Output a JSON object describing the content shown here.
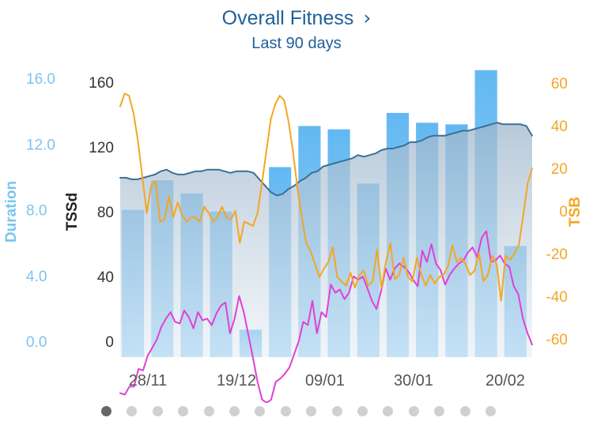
{
  "header": {
    "title": "Overall Fitness",
    "chevron": "›",
    "subtitle": "Last 90 days"
  },
  "colors": {
    "title": "#1f5f99",
    "duration_axis": "#7cc4ee",
    "bars": "#6fbdf2",
    "tssd_line": "#3d6f94",
    "fatigue_line": "#e040d6",
    "tsb_line": "#f3a623",
    "axis_text": "#333333"
  },
  "chart_data": {
    "type": "bar+line",
    "x_ticks": [
      "28/11",
      "19/12",
      "09/01",
      "30/01",
      "20/02"
    ],
    "axes": {
      "duration": {
        "label": "Duration",
        "ticks": [
          "0.0",
          "4.0",
          "8.0",
          "12.0",
          "16.0"
        ],
        "range": [
          0,
          16
        ]
      },
      "tssd": {
        "label": "TSSd",
        "ticks": [
          "0",
          "40",
          "80",
          "120",
          "160"
        ],
        "range": [
          0,
          160
        ]
      },
      "tsb": {
        "label": "TSB",
        "ticks": [
          "-60",
          "-40",
          "-20",
          "0",
          "20",
          "40",
          "60"
        ],
        "range": [
          -60,
          60
        ]
      }
    },
    "duration_bars": [
      8.0,
      9.8,
      9.0,
      7.9,
      0.7,
      10.6,
      13.1,
      12.9,
      9.6,
      13.9,
      13.3,
      13.2,
      16.5,
      5.8
    ],
    "tssd_series": [
      101,
      101,
      100,
      100,
      101,
      102,
      103,
      105,
      106,
      104,
      103,
      103,
      104,
      105,
      105,
      106,
      106,
      106,
      105,
      104,
      105,
      105,
      105,
      104,
      100,
      96,
      92,
      90,
      91,
      94,
      96,
      99,
      101,
      104,
      105,
      108,
      109,
      110,
      111,
      112,
      113,
      115,
      114,
      115,
      116,
      118,
      119,
      119,
      120,
      121,
      123,
      123,
      124,
      126,
      127,
      127,
      127,
      128,
      129,
      130,
      130,
      131,
      132,
      133,
      134,
      135,
      134,
      134,
      134,
      134,
      133,
      127
    ],
    "fatigue_series": [
      -32,
      -33,
      -28,
      -28,
      -17,
      -18,
      -9,
      -4,
      1,
      9,
      14,
      18,
      12,
      11,
      19,
      15,
      8,
      18,
      13,
      14,
      10,
      17,
      22,
      24,
      5,
      14,
      28,
      18,
      4,
      -10,
      -25,
      -36,
      -38,
      -36,
      -25,
      -23,
      -20,
      -16,
      -8,
      0,
      12,
      10,
      25,
      5,
      18,
      15,
      35,
      30,
      32,
      26,
      30,
      40,
      38,
      40,
      33,
      25,
      20,
      31,
      45,
      38,
      45,
      48,
      46,
      43,
      38,
      34,
      56,
      49,
      60,
      48,
      44,
      35,
      41,
      45,
      48,
      50,
      55,
      58,
      52,
      64,
      68,
      49,
      50,
      53,
      48,
      46,
      34,
      29,
      14,
      5,
      -2
    ],
    "tsb_series": [
      49,
      55,
      54,
      46,
      33,
      16,
      -1,
      12,
      14,
      -5,
      -4,
      7,
      -3,
      4,
      -2,
      -5,
      -3,
      -3,
      -5,
      2,
      -1,
      -5,
      -3,
      2,
      -3,
      -4,
      0,
      -15,
      -5,
      -6,
      -7,
      -1,
      13,
      28,
      43,
      50,
      54,
      52,
      42,
      28,
      11,
      -3,
      -15,
      -19,
      -25,
      -31,
      -27,
      -24,
      -17,
      -31,
      -33,
      -35,
      -29,
      -36,
      -30,
      -28,
      -35,
      -33,
      -18,
      -36,
      -24,
      -15,
      -32,
      -30,
      -22,
      -31,
      -33,
      -22,
      -30,
      -35,
      -30,
      -34,
      -31,
      -30,
      -26,
      -16,
      -24,
      -22,
      -25,
      -30,
      -28,
      -20,
      -33,
      -30,
      -21,
      -25,
      -42,
      -21,
      -23,
      -20,
      -16,
      -2,
      13,
      20
    ]
  },
  "pager": {
    "count": 16,
    "active": 0
  }
}
